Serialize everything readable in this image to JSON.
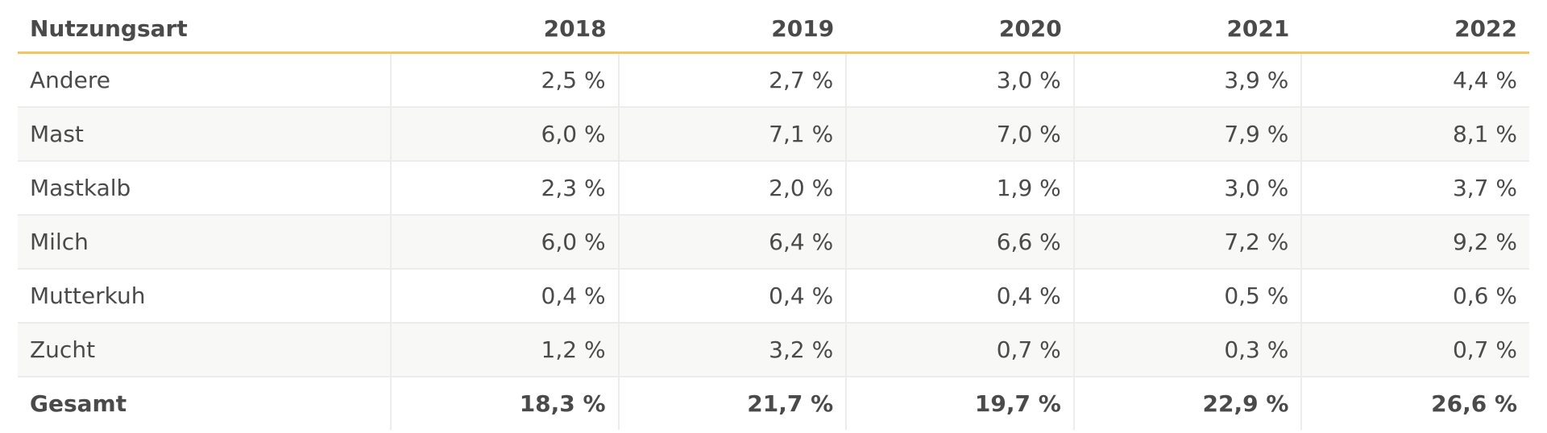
{
  "table": {
    "columns": [
      "Nutzungsart",
      "2018",
      "2019",
      "2020",
      "2021",
      "2022"
    ],
    "rows": [
      {
        "label": "Andere",
        "values": [
          "2,5 %",
          "2,7 %",
          "3,0 %",
          "3,9 %",
          "4,4 %"
        ]
      },
      {
        "label": "Mast",
        "values": [
          "6,0 %",
          "7,1 %",
          "7,0 %",
          "7,9 %",
          "8,1 %"
        ]
      },
      {
        "label": "Mastkalb",
        "values": [
          "2,3 %",
          "2,0 %",
          "1,9 %",
          "3,0 %",
          "3,7 %"
        ]
      },
      {
        "label": "Milch",
        "values": [
          "6,0 %",
          "6,4 %",
          "6,6 %",
          "7,2 %",
          "9,2 %"
        ]
      },
      {
        "label": "Mutterkuh",
        "values": [
          "0,4 %",
          "0,4 %",
          "0,4 %",
          "0,5 %",
          "0,6 %"
        ]
      },
      {
        "label": "Zucht",
        "values": [
          "1,2 %",
          "3,2 %",
          "0,7 %",
          "0,3 %",
          "0,7 %"
        ]
      }
    ],
    "total": {
      "label": "Gesamt",
      "values": [
        "18,3 %",
        "21,7 %",
        "19,7 %",
        "22,9 %",
        "26,6 %"
      ]
    }
  },
  "colors": {
    "header_rule": "#f0c75e",
    "text": "#4a4a4a",
    "stripe": "#f8f8f7",
    "grid": "#ececec"
  }
}
